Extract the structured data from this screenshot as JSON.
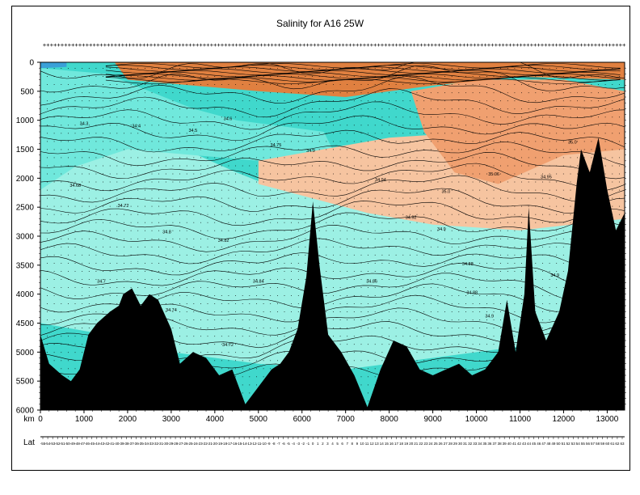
{
  "chart_data": {
    "type": "heatmap",
    "title": "Salinity for A16 25W",
    "x_axis": {
      "label": "km",
      "range": [
        0,
        13400
      ],
      "ticks": [
        0,
        1000,
        2000,
        3000,
        4000,
        5000,
        6000,
        7000,
        8000,
        9000,
        10000,
        11000,
        12000,
        13000
      ]
    },
    "lat_axis": {
      "label": "Lat",
      "ticks": [
        "-55",
        "-54",
        "-53",
        "-52",
        "-51",
        "-50",
        "-49",
        "-48",
        "-47",
        "-46",
        "-45",
        "-44",
        "-43",
        "-42",
        "-41",
        "-40",
        "-39",
        "-38",
        "-37",
        "-36",
        "-35",
        "-34",
        "-33",
        "-32",
        "-31",
        "-30",
        "-29",
        "-28",
        "-27",
        "-26",
        "-25",
        "-24",
        "-23",
        "-22",
        "-21",
        "-20",
        "-19",
        "-18",
        "-17",
        "-16",
        "-15",
        "-14",
        "-13",
        "-12",
        "-11",
        "-10",
        "-9",
        "-8",
        "-7",
        "-6",
        "-5",
        "-4",
        "-3",
        "-2",
        "-1",
        "0",
        "1",
        "2",
        "3",
        "4",
        "5",
        "6",
        "7",
        "8",
        "9",
        "10",
        "11",
        "12",
        "13",
        "14",
        "15",
        "16",
        "17",
        "18",
        "19",
        "20",
        "21",
        "22",
        "23",
        "24",
        "25",
        "26",
        "27",
        "28",
        "29",
        "30",
        "31",
        "32",
        "33",
        "34",
        "35",
        "36",
        "37",
        "38",
        "39",
        "40",
        "41",
        "42",
        "43",
        "44",
        "45",
        "46",
        "47",
        "48",
        "49",
        "50",
        "51",
        "52",
        "53",
        "54",
        "55",
        "56",
        "57",
        "58",
        "59",
        "60",
        "61",
        "62",
        "63"
      ]
    },
    "y_axis": {
      "label": "",
      "range": [
        0,
        6000
      ],
      "inverted": true,
      "ticks": [
        0,
        500,
        1000,
        1500,
        2000,
        2500,
        3000,
        3500,
        4000,
        4500,
        5000,
        5500,
        6000
      ]
    },
    "contour_labels": [
      {
        "x": 1000,
        "y": 1080,
        "text": "34.3"
      },
      {
        "x": 2200,
        "y": 1120,
        "text": "34.4"
      },
      {
        "x": 3500,
        "y": 1200,
        "text": "34.5"
      },
      {
        "x": 4300,
        "y": 1000,
        "text": "34.6"
      },
      {
        "x": 5400,
        "y": 1450,
        "text": "34.75"
      },
      {
        "x": 6200,
        "y": 1550,
        "text": "34.9"
      },
      {
        "x": 800,
        "y": 2150,
        "text": "34.68"
      },
      {
        "x": 1900,
        "y": 2500,
        "text": "34.72"
      },
      {
        "x": 2900,
        "y": 2950,
        "text": "34.8"
      },
      {
        "x": 4200,
        "y": 3100,
        "text": "34.82"
      },
      {
        "x": 7800,
        "y": 2050,
        "text": "34.94"
      },
      {
        "x": 9300,
        "y": 2250,
        "text": "35.0"
      },
      {
        "x": 10400,
        "y": 1950,
        "text": "35.06"
      },
      {
        "x": 8500,
        "y": 2700,
        "text": "34.92"
      },
      {
        "x": 9200,
        "y": 2900,
        "text": "34.9"
      },
      {
        "x": 9800,
        "y": 3500,
        "text": "34.88"
      },
      {
        "x": 1400,
        "y": 3800,
        "text": "34.7"
      },
      {
        "x": 3000,
        "y": 4300,
        "text": "34.74"
      },
      {
        "x": 4300,
        "y": 4900,
        "text": "34.72"
      },
      {
        "x": 5000,
        "y": 3800,
        "text": "34.84"
      },
      {
        "x": 7600,
        "y": 3800,
        "text": "34.86"
      },
      {
        "x": 9900,
        "y": 4000,
        "text": "34.88"
      },
      {
        "x": 10300,
        "y": 4400,
        "text": "34.9"
      },
      {
        "x": 11800,
        "y": 3700,
        "text": "34.9"
      },
      {
        "x": 12200,
        "y": 1400,
        "text": "35.0"
      },
      {
        "x": 11600,
        "y": 2000,
        "text": "34.95"
      }
    ],
    "colors": {
      "surface_fresh": "#3aa0d8",
      "deep_fresh": "#40d8cc",
      "mid_fresh": "#70e8dc",
      "mid": "#9cf0e4",
      "salty_light": "#f6c4a0",
      "salty_mid": "#f0a070",
      "salty_high": "#e08040",
      "seafloor": "#000000",
      "contour": "#000000"
    }
  }
}
